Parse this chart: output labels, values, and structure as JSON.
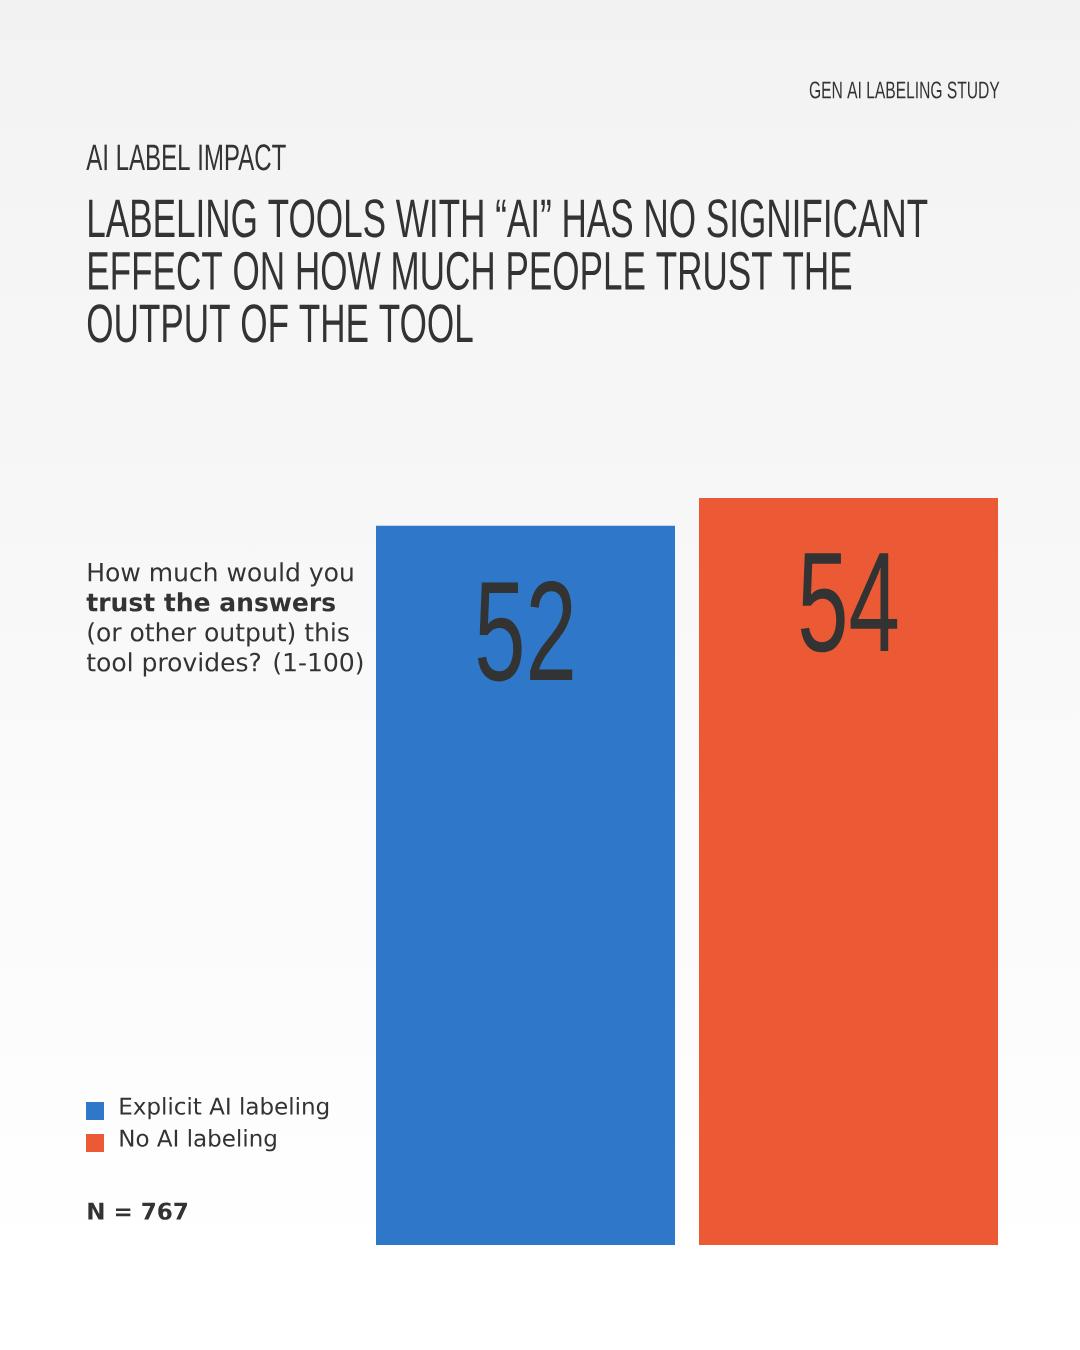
{
  "chart_data": {
    "type": "bar",
    "title": "LABELING TOOLS WITH “AI” HAS NO SIGNIFICANT EFFECT ON HOW MUCH PEOPLE TRUST THE OUTPUT OF THE TOOL",
    "subtitle": "AI LABEL IMPACT",
    "categories": [
      null
    ],
    "series": [
      {
        "name": "Explicit AI labeling",
        "color": "#2f78c9",
        "values": [
          52
        ]
      },
      {
        "name": "No AI labeling",
        "color": "#eb5a34",
        "values": [
          54
        ]
      }
    ],
    "data_labels": true,
    "legend": "bottom left",
    "tick_labels": false,
    "annotations": [
      "GEN AI LABELING STUDY",
      "How much would you **trust the answers** (or other output) this tool provides? (1-100)",
      "N = 767"
    ]
  }
}
